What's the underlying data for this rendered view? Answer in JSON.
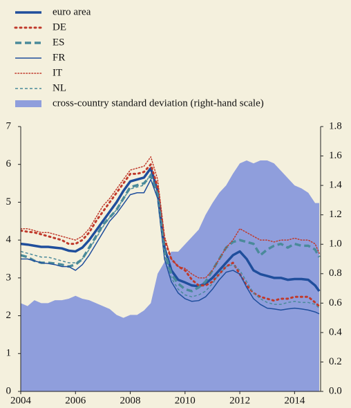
{
  "chart_data": {
    "type": "line",
    "x": [
      2004,
      2004.25,
      2004.5,
      2004.75,
      2005,
      2005.25,
      2005.5,
      2005.75,
      2006,
      2006.25,
      2006.5,
      2006.75,
      2007,
      2007.25,
      2007.5,
      2007.75,
      2008,
      2008.25,
      2008.5,
      2008.75,
      2009,
      2009.25,
      2009.5,
      2009.75,
      2010,
      2010.25,
      2010.5,
      2010.75,
      2011,
      2011.25,
      2011.5,
      2011.75,
      2012,
      2012.25,
      2012.5,
      2012.75,
      2013,
      2013.25,
      2013.5,
      2013.75,
      2014,
      2014.25,
      2014.5,
      2014.75,
      2014.9
    ],
    "series": [
      {
        "name": "cross-country standard deviation (right-hand scale)",
        "kind": "area",
        "axis": "y2",
        "color": "#8f9edc",
        "values": [
          0.6,
          0.58,
          0.62,
          0.6,
          0.6,
          0.62,
          0.62,
          0.63,
          0.65,
          0.63,
          0.62,
          0.6,
          0.58,
          0.56,
          0.52,
          0.5,
          0.52,
          0.52,
          0.55,
          0.6,
          0.8,
          0.88,
          0.95,
          0.95,
          1.0,
          1.05,
          1.1,
          1.2,
          1.28,
          1.35,
          1.4,
          1.48,
          1.55,
          1.57,
          1.55,
          1.57,
          1.57,
          1.55,
          1.5,
          1.45,
          1.4,
          1.38,
          1.35,
          1.28,
          1.28
        ]
      },
      {
        "name": "euro area",
        "kind": "line",
        "color": "#1f4e9c",
        "linestyle": "solid",
        "linewidth": 3.5,
        "values": [
          3.9,
          3.88,
          3.85,
          3.82,
          3.82,
          3.8,
          3.78,
          3.72,
          3.7,
          3.8,
          4.0,
          4.25,
          4.5,
          4.75,
          5.0,
          5.3,
          5.55,
          5.6,
          5.65,
          5.9,
          5.3,
          3.8,
          3.2,
          2.95,
          2.88,
          2.8,
          2.78,
          2.85,
          3.0,
          3.2,
          3.4,
          3.6,
          3.7,
          3.5,
          3.2,
          3.1,
          3.05,
          3.0,
          3.0,
          2.95,
          2.97,
          2.97,
          2.95,
          2.8,
          2.65
        ]
      },
      {
        "name": "DE",
        "kind": "line",
        "color": "#c0392b",
        "linestyle": "dotted",
        "linewidth": 3,
        "values": [
          4.25,
          4.22,
          4.2,
          4.15,
          4.1,
          4.05,
          4.0,
          3.9,
          3.9,
          4.0,
          4.2,
          4.5,
          4.75,
          5.0,
          5.25,
          5.5,
          5.75,
          5.75,
          5.8,
          6.0,
          5.4,
          4.0,
          3.5,
          3.3,
          3.2,
          2.95,
          2.8,
          2.8,
          2.9,
          3.1,
          3.3,
          3.4,
          3.1,
          2.8,
          2.6,
          2.5,
          2.45,
          2.4,
          2.45,
          2.45,
          2.5,
          2.5,
          2.5,
          2.35,
          2.25
        ]
      },
      {
        "name": "ES",
        "kind": "line",
        "color": "#4a8a9a",
        "linestyle": "dashed",
        "linewidth": 3.5,
        "values": [
          3.6,
          3.55,
          3.45,
          3.4,
          3.4,
          3.38,
          3.35,
          3.3,
          3.35,
          3.5,
          3.8,
          4.1,
          4.4,
          4.6,
          4.8,
          5.1,
          5.4,
          5.45,
          5.5,
          5.7,
          5.2,
          3.7,
          3.1,
          2.85,
          2.7,
          2.65,
          2.75,
          2.9,
          3.2,
          3.5,
          3.8,
          3.95,
          4.0,
          3.95,
          3.9,
          3.6,
          3.75,
          3.85,
          3.9,
          3.8,
          3.9,
          3.85,
          3.85,
          3.75,
          3.55
        ]
      },
      {
        "name": "FR",
        "kind": "line",
        "color": "#1f4e9c",
        "linestyle": "solid",
        "linewidth": 1.5,
        "values": [
          3.5,
          3.5,
          3.45,
          3.4,
          3.38,
          3.35,
          3.3,
          3.3,
          3.2,
          3.35,
          3.6,
          3.9,
          4.2,
          4.5,
          4.7,
          4.95,
          5.2,
          5.25,
          5.25,
          5.6,
          5.1,
          3.5,
          2.9,
          2.6,
          2.45,
          2.38,
          2.4,
          2.5,
          2.7,
          2.95,
          3.15,
          3.2,
          3.1,
          2.75,
          2.45,
          2.3,
          2.2,
          2.18,
          2.15,
          2.18,
          2.2,
          2.18,
          2.15,
          2.1,
          2.05
        ]
      },
      {
        "name": "IT",
        "kind": "line",
        "color": "#c0392b",
        "linestyle": "dotted",
        "linewidth": 1.5,
        "values": [
          4.3,
          4.3,
          4.25,
          4.2,
          4.2,
          4.15,
          4.1,
          4.05,
          4.0,
          4.1,
          4.3,
          4.6,
          4.9,
          5.1,
          5.35,
          5.6,
          5.85,
          5.9,
          5.95,
          6.2,
          5.6,
          4.1,
          3.5,
          3.3,
          3.25,
          3.1,
          3.0,
          3.0,
          3.2,
          3.5,
          3.8,
          4.0,
          4.3,
          4.2,
          4.1,
          4.0,
          4.0,
          3.95,
          4.0,
          4.0,
          4.05,
          4.0,
          4.0,
          3.9,
          3.65
        ]
      },
      {
        "name": "NL",
        "kind": "line",
        "color": "#4a8a9a",
        "linestyle": "dashed",
        "linewidth": 1.5,
        "values": [
          3.7,
          3.65,
          3.6,
          3.55,
          3.55,
          3.5,
          3.45,
          3.4,
          3.4,
          3.5,
          3.75,
          4.05,
          4.35,
          4.6,
          4.8,
          5.1,
          5.35,
          5.4,
          5.45,
          5.75,
          5.2,
          3.6,
          3.0,
          2.7,
          2.55,
          2.5,
          2.55,
          2.65,
          2.85,
          3.1,
          3.3,
          3.35,
          3.2,
          2.9,
          2.6,
          2.45,
          2.35,
          2.3,
          2.3,
          2.35,
          2.38,
          2.35,
          2.35,
          2.3,
          2.2
        ]
      }
    ],
    "legend_order": [
      1,
      2,
      3,
      4,
      5,
      6,
      0
    ],
    "xlim": [
      2004,
      2014.95
    ],
    "xticks": [
      2004,
      2006,
      2008,
      2010,
      2012,
      2014
    ],
    "ylim": [
      0,
      7
    ],
    "yticks": [
      0,
      1,
      2,
      3,
      4,
      5,
      6,
      7
    ],
    "y2lim": [
      0,
      1.8
    ],
    "y2ticks": [
      {
        "value": 0,
        "label": "0.0"
      },
      0.2,
      0.4,
      0.6,
      0.8,
      {
        "value": 1,
        "label": "1.0"
      },
      1.2,
      1.4,
      1.6,
      1.8
    ],
    "legend": "top-left",
    "grid": false
  }
}
